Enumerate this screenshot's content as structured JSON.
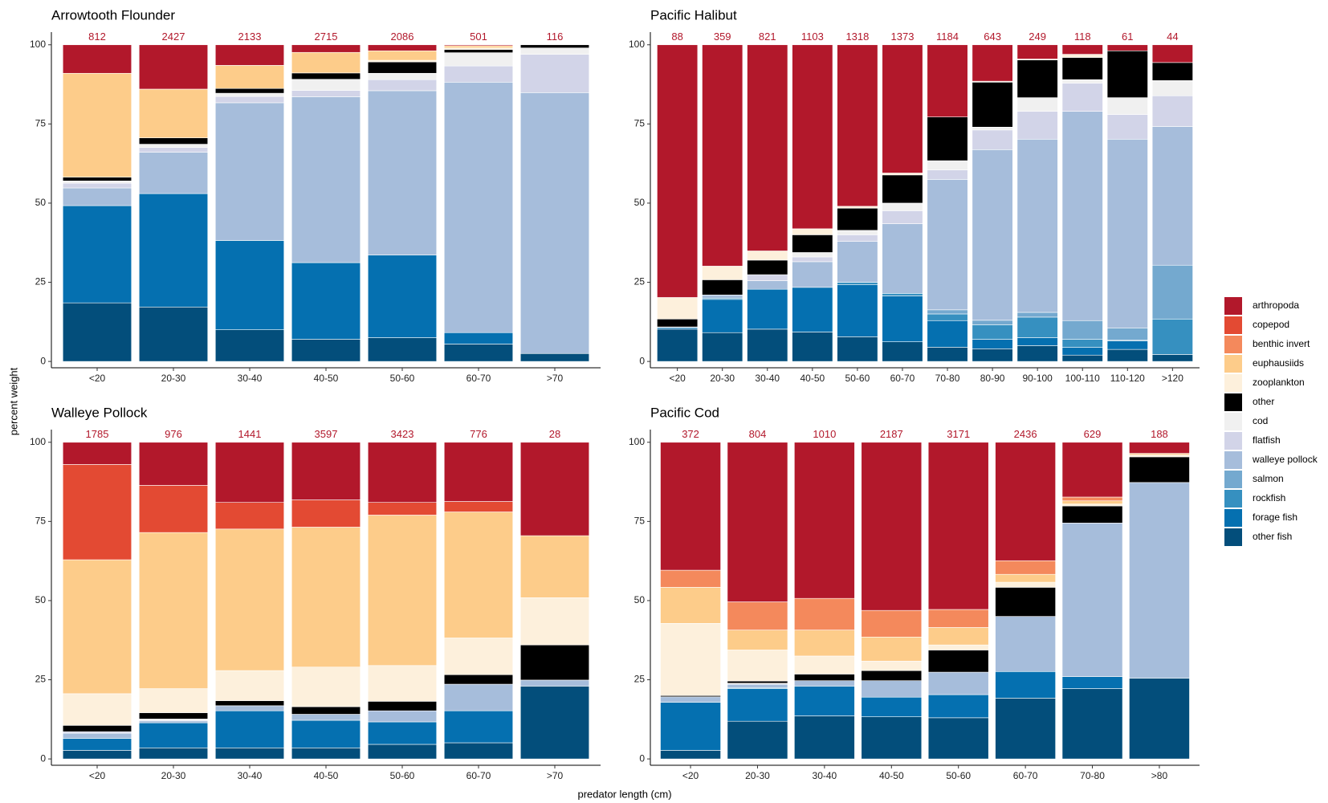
{
  "chart_data": {
    "type": "bar",
    "stacked": true,
    "xlabel": "predator length (cm)",
    "ylabel": "percent weight",
    "ylim": [
      -2,
      104
    ],
    "yticks": [
      0,
      25,
      50,
      75,
      100
    ],
    "panels": [
      {
        "title": "Arrowtooth Flounder",
        "categories": [
          "<20",
          "20-30",
          "30-40",
          "40-50",
          "50-60",
          "60-70",
          ">70"
        ],
        "sample_sizes": [
          812,
          2427,
          2133,
          2715,
          2086,
          501,
          116
        ]
      },
      {
        "title": "Pacific Halibut",
        "categories": [
          "<20",
          "20-30",
          "30-40",
          "40-50",
          "50-60",
          "60-70",
          "70-80",
          "80-90",
          "90-100",
          "100-110",
          "110-120",
          ">120"
        ],
        "sample_sizes": [
          88,
          359,
          821,
          1103,
          1318,
          1373,
          1184,
          643,
          249,
          118,
          61,
          44
        ]
      },
      {
        "title": "Walleye Pollock",
        "categories": [
          "<20",
          "20-30",
          "30-40",
          "40-50",
          "50-60",
          "60-70",
          ">70"
        ],
        "sample_sizes": [
          1785,
          976,
          1441,
          3597,
          3423,
          776,
          28
        ]
      },
      {
        "title": "Pacific Cod",
        "categories": [
          "<20",
          "20-30",
          "30-40",
          "40-50",
          "50-60",
          "60-70",
          "70-80",
          ">80"
        ],
        "sample_sizes": [
          372,
          804,
          1010,
          2187,
          3171,
          2436,
          629,
          188
        ]
      }
    ],
    "series": [
      {
        "name": "arthropoda",
        "color": "#b2182b",
        "values": [
          [
            9,
            14,
            6.5,
            2.4,
            1.9,
            0.3,
            0
          ],
          [
            79.8,
            69.9,
            65.1,
            58.1,
            51,
            40.5,
            22.8,
            11.5,
            4.5,
            3,
            1.9,
            5.6
          ],
          [
            7,
            13.6,
            19,
            18.2,
            19,
            18.7,
            29.5
          ],
          [
            40.4,
            50.4,
            49.3,
            53.1,
            52.8,
            37.4,
            17.3,
            3.5
          ]
        ]
      },
      {
        "name": "copepod",
        "color": "#e34a33",
        "values": [
          [
            0,
            0,
            0,
            0,
            0,
            0,
            0
          ],
          [
            0,
            0,
            0,
            0,
            0,
            0,
            0,
            0,
            0,
            0,
            0,
            0
          ],
          [
            30.1,
            14.9,
            8.4,
            8.6,
            4,
            3.3,
            0
          ],
          [
            0,
            0,
            0,
            0,
            0,
            0,
            0,
            0
          ]
        ]
      },
      {
        "name": "benthic invert",
        "color": "#f4895c",
        "values": [
          [
            0,
            0,
            0,
            0,
            0,
            0,
            0
          ],
          [
            0,
            0,
            0,
            0,
            0,
            0,
            0,
            0,
            0,
            0,
            0,
            0
          ],
          [
            0,
            0,
            0,
            0,
            0,
            0,
            0
          ],
          [
            5.4,
            8.9,
            10,
            8.4,
            5.7,
            4.3,
            1.2,
            0
          ]
        ]
      },
      {
        "name": "euphausiids",
        "color": "#fdcc8a",
        "values": [
          [
            32.8,
            15.4,
            7.3,
            6.5,
            3,
            0.7,
            0
          ],
          [
            0,
            0,
            0,
            0,
            0,
            0,
            0,
            0,
            0,
            0,
            0,
            0
          ],
          [
            42.3,
            49.3,
            44.7,
            44.2,
            47.5,
            39.8,
            19.6
          ],
          [
            11.4,
            6.3,
            8.2,
            7.6,
            5.5,
            2.5,
            1,
            0.5
          ]
        ]
      },
      {
        "name": "zooplankton",
        "color": "#fdf0dc",
        "values": [
          [
            0,
            0,
            0,
            0,
            0.5,
            0.5,
            0
          ],
          [
            6.8,
            4.3,
            2.9,
            1.9,
            0.6,
            0.6,
            0,
            0.3,
            0.3,
            1,
            0,
            0
          ],
          [
            10,
            7.6,
            9.5,
            12.5,
            11.3,
            11.6,
            14.9
          ],
          [
            22.8,
            9.8,
            5.7,
            3,
            1.6,
            1.6,
            0.6,
            0.6
          ]
        ]
      },
      {
        "name": "other",
        "color": "#000000",
        "values": [
          [
            1.2,
            2,
            1.5,
            2,
            3.6,
            1,
            1
          ],
          [
            2.5,
            4.8,
            4.6,
            5.6,
            7,
            8.9,
            13.8,
            14.2,
            11.9,
            7,
            14.8,
            5.7
          ],
          [
            2,
            2,
            1.6,
            2.4,
            3,
            3,
            11.1
          ],
          [
            0.4,
            0.7,
            2.1,
            3.2,
            7,
            9.2,
            5.4,
            8.1
          ]
        ]
      },
      {
        "name": "cod",
        "color": "#f0f0f0",
        "values": [
          [
            0.7,
            1,
            1,
            3.5,
            2,
            4.2,
            2
          ],
          [
            0.2,
            0,
            0,
            1.4,
            1.4,
            2.4,
            2.9,
            0.9,
            4.3,
            1.1,
            5.3,
            4.8
          ],
          [
            0,
            0.3,
            0,
            0,
            0,
            0,
            0
          ],
          [
            0,
            0.3,
            0,
            0,
            0,
            0,
            0,
            0
          ]
        ]
      },
      {
        "name": "flatfish",
        "color": "#d2d4e8",
        "values": [
          [
            1.5,
            1.5,
            2,
            2,
            3.5,
            5.1,
            12.1
          ],
          [
            0,
            0,
            1.9,
            1.5,
            2.1,
            4.1,
            3,
            6.2,
            8.8,
            8.9,
            7.8,
            9.7
          ],
          [
            0.5,
            0.3,
            0,
            0,
            0,
            0,
            0
          ],
          [
            0,
            0,
            0,
            0,
            0,
            0,
            0,
            0
          ]
        ]
      },
      {
        "name": "walleye pollock",
        "color": "#a6bddb",
        "values": [
          [
            5.6,
            13.1,
            43.5,
            52.4,
            51.9,
            79.1,
            82.4
          ],
          [
            0,
            1,
            2.7,
            8.1,
            12.9,
            22,
            41.2,
            53.9,
            54.7,
            66.1,
            59.7,
            43.8
          ],
          [
            1.6,
            0.6,
            1.6,
            1.9,
            3.5,
            8.4,
            1.9
          ],
          [
            1.7,
            1.1,
            1.7,
            5.2,
            7.1,
            17.4,
            48.5,
            61.8
          ]
        ]
      },
      {
        "name": "salmon",
        "color": "#74a9cf",
        "values": [
          [
            0,
            0,
            0,
            0,
            0,
            0,
            0
          ],
          [
            0,
            0,
            0,
            0,
            0,
            0,
            1.3,
            1.4,
            1.5,
            5.9,
            3.8,
            17
          ],
          [
            0,
            0,
            0,
            0,
            0,
            0,
            0
          ],
          [
            0,
            0,
            0,
            0,
            0,
            0,
            0,
            0
          ]
        ]
      },
      {
        "name": "rockfish",
        "color": "#3690c0",
        "values": [
          [
            0,
            0,
            0,
            0,
            0,
            0,
            0
          ],
          [
            0,
            0.4,
            0,
            0,
            0.8,
            0.8,
            2.1,
            4.6,
            6.5,
            2.5,
            0.2,
            11.2
          ],
          [
            0,
            0,
            0,
            0,
            0,
            0,
            0
          ],
          [
            0,
            0.3,
            0,
            0,
            0,
            0,
            0,
            0
          ]
        ]
      },
      {
        "name": "forage fish",
        "color": "#0570b0",
        "values": [
          [
            30.7,
            35.8,
            28.2,
            24.2,
            26.1,
            3.6,
            0
          ],
          [
            0.5,
            10.5,
            12.6,
            14.1,
            16.4,
            14.5,
            8.4,
            3,
            2.5,
            2.5,
            2.7,
            0
          ],
          [
            3.8,
            7.9,
            11.7,
            8.7,
            7.1,
            10.1,
            0
          ],
          [
            15.2,
            10.3,
            9.4,
            6.2,
            7.3,
            8.4,
            3.8,
            0
          ]
        ]
      },
      {
        "name": "other fish",
        "color": "#034e7b",
        "values": [
          [
            18.5,
            17.2,
            10,
            7,
            7.5,
            5.5,
            2.5
          ],
          [
            10.2,
            9.1,
            10.2,
            9.3,
            7.8,
            6.2,
            4.5,
            4,
            5,
            2,
            3.8,
            2.2
          ],
          [
            2.7,
            3.5,
            3.5,
            3.5,
            4.6,
            5.1,
            23
          ],
          [
            2.7,
            11.9,
            13.6,
            13.3,
            13,
            19.2,
            22.2,
            25.5
          ]
        ]
      }
    ]
  }
}
